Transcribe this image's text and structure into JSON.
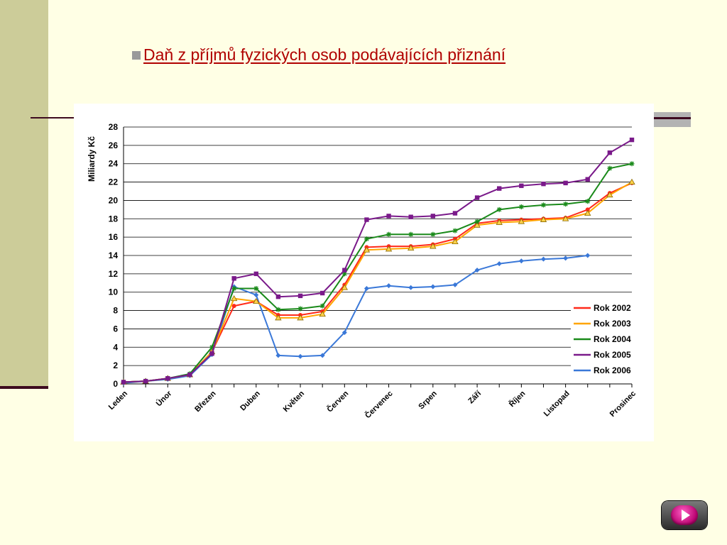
{
  "slide": {
    "title": "Daň z příjmů fyzických osob podávajících přiznání",
    "next_icon": "play-triangle-icon"
  },
  "chart_data": {
    "type": "line",
    "title": "",
    "xlabel": "",
    "ylabel": "Miliardy Kč",
    "ylim": [
      0,
      28
    ],
    "yticks": [
      0,
      2,
      4,
      6,
      8,
      10,
      12,
      14,
      16,
      18,
      20,
      22,
      24,
      26,
      28
    ],
    "grid": true,
    "legend": "right",
    "x_labels": [
      "Leden",
      "Únor",
      "Březen",
      "Duben",
      "Květen",
      "Červen",
      "Červenec",
      "Srpen",
      "Září",
      "Říjen",
      "Listopad",
      "Prosinec"
    ],
    "series": [
      {
        "name": "Rok 2002",
        "color": "#ff2a1a",
        "marker": "circle",
        "values": [
          0.2,
          0.3,
          0.6,
          1.0,
          3.5,
          8.5,
          9.0,
          7.5,
          7.5,
          7.9,
          10.8,
          14.9,
          15.0,
          15.0,
          15.2,
          15.8,
          17.5,
          17.8,
          17.9,
          18.0,
          18.1,
          19.0,
          20.8,
          21.9
        ]
      },
      {
        "name": "Rok 2003",
        "color": "#ffa500",
        "marker": "triangle",
        "values": [
          0.2,
          0.3,
          0.6,
          1.0,
          3.5,
          9.3,
          9.0,
          7.2,
          7.2,
          7.6,
          10.5,
          14.6,
          14.7,
          14.8,
          15.0,
          15.5,
          17.3,
          17.6,
          17.7,
          17.9,
          18.0,
          18.6,
          20.6,
          22.0
        ]
      },
      {
        "name": "Rok 2004",
        "color": "#1a8a1a",
        "marker": "star",
        "values": [
          0.2,
          0.3,
          0.6,
          1.1,
          4.0,
          10.4,
          10.4,
          8.1,
          8.2,
          8.5,
          12.0,
          15.8,
          16.3,
          16.3,
          16.3,
          16.7,
          17.7,
          19.0,
          19.3,
          19.5,
          19.6,
          19.9,
          23.5,
          24.0
        ]
      },
      {
        "name": "Rok 2005",
        "color": "#7a1a8a",
        "marker": "square",
        "values": [
          0.2,
          0.3,
          0.6,
          1.0,
          3.3,
          11.5,
          12.0,
          9.5,
          9.6,
          9.9,
          12.4,
          17.9,
          18.3,
          18.2,
          18.3,
          18.6,
          20.3,
          21.3,
          21.6,
          21.8,
          21.9,
          22.3,
          25.2,
          26.6
        ]
      },
      {
        "name": "Rok 2006",
        "color": "#3a78d8",
        "marker": "diamond",
        "values": [
          0.1,
          0.3,
          0.5,
          0.9,
          3.2,
          10.6,
          9.7,
          3.1,
          3.0,
          3.1,
          5.6,
          10.4,
          10.7,
          10.5,
          10.6,
          10.8,
          12.4,
          13.1,
          13.4,
          13.6,
          13.7,
          14.0
        ]
      }
    ]
  }
}
